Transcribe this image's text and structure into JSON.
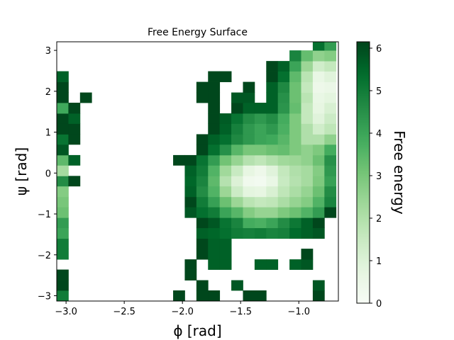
{
  "chart_data": {
    "type": "heatmap",
    "title": "Free Energy Surface",
    "xlabel": "ϕ  [rad]",
    "ylabel": "ψ  [rad]",
    "colorbar_label": "Free energy",
    "colormap": "Greens",
    "color_low": "#f7fcf5",
    "color_high": "#00441b",
    "xlim": [
      -3.08,
      -0.66
    ],
    "ylim": [
      -3.13,
      3.21
    ],
    "vlim": [
      0,
      6.15
    ],
    "x_ticks": [
      -3.0,
      -2.5,
      -2.0,
      -1.5,
      -1.0
    ],
    "x_tick_labels": [
      "−3.0",
      "−2.5",
      "−2.0",
      "−1.5",
      "−1.0"
    ],
    "y_ticks": [
      -3,
      -2,
      -1,
      0,
      1,
      2,
      3
    ],
    "y_tick_labels": [
      "−3",
      "−2",
      "−1",
      "0",
      "1",
      "2",
      "3"
    ],
    "colorbar_ticks": [
      0,
      1,
      2,
      3,
      4,
      5,
      6
    ],
    "colorbar_tick_labels": [
      "0",
      "1",
      "2",
      "3",
      "4",
      "5",
      "6"
    ],
    "grid": false,
    "x_bin_edges": [
      -3.08,
      -2.98,
      -2.88,
      -2.78,
      -2.68,
      -2.58,
      -2.48,
      -2.38,
      -2.28,
      -2.18,
      -2.08,
      -1.98,
      -1.88,
      -1.78,
      -1.68,
      -1.58,
      -1.48,
      -1.38,
      -1.28,
      -1.18,
      -1.08,
      -0.98,
      -0.88,
      -0.78,
      -0.68
    ],
    "y_bin_edges": [
      -3.13,
      -2.87,
      -2.62,
      -2.36,
      -2.11,
      -1.85,
      -1.6,
      -1.34,
      -1.09,
      -0.83,
      -0.58,
      -0.32,
      -0.07,
      0.19,
      0.44,
      0.7,
      0.95,
      1.21,
      1.46,
      1.72,
      1.97,
      2.23,
      2.49,
      2.74,
      3.0,
      3.21
    ],
    "values": [
      [
        null,
        null,
        null,
        null,
        null,
        null,
        null,
        null,
        null,
        null,
        6.1,
        null,
        6.1,
        6.1,
        null,
        null,
        6.1,
        6.1,
        null,
        null,
        null,
        null,
        6.1,
        null,
        null
      ],
      [
        null,
        null,
        null,
        null,
        null,
        null,
        null,
        null,
        null,
        null,
        null,
        null,
        6.1,
        null,
        null,
        5.8,
        null,
        null,
        null,
        null,
        null,
        null,
        5.8,
        null,
        null
      ],
      [
        null,
        null,
        null,
        null,
        null,
        null,
        null,
        null,
        null,
        null,
        null,
        6.1,
        null,
        null,
        null,
        null,
        null,
        null,
        null,
        null,
        null,
        null,
        null,
        null,
        null
      ],
      [
        null,
        null,
        null,
        null,
        null,
        null,
        null,
        null,
        null,
        null,
        null,
        6.1,
        null,
        5.6,
        5.6,
        null,
        null,
        5.6,
        5.6,
        null,
        5.6,
        5.8,
        null,
        null,
        null
      ],
      [
        null,
        null,
        null,
        null,
        null,
        null,
        null,
        null,
        null,
        null,
        null,
        null,
        6.1,
        5.6,
        5.6,
        null,
        null,
        null,
        null,
        null,
        null,
        6.1,
        null,
        null,
        null
      ],
      [
        null,
        null,
        null,
        null,
        null,
        null,
        null,
        null,
        null,
        null,
        null,
        null,
        6.1,
        5.6,
        5.6,
        null,
        null,
        null,
        null,
        null,
        null,
        null,
        null,
        null,
        null
      ],
      [
        null,
        null,
        null,
        null,
        null,
        null,
        null,
        null,
        null,
        null,
        null,
        null,
        5.6,
        5.5,
        5.3,
        5.0,
        4.9,
        5.0,
        4.8,
        4.9,
        5.4,
        5.6,
        5.8,
        null,
        null
      ],
      [
        null,
        null,
        null,
        null,
        null,
        null,
        null,
        null,
        null,
        null,
        null,
        null,
        6.1,
        5.8,
        5.2,
        4.8,
        3.8,
        3.7,
        4.0,
        4.6,
        5.1,
        5.6,
        6.1,
        null,
        null
      ],
      [
        null,
        null,
        null,
        null,
        null,
        null,
        null,
        null,
        null,
        null,
        null,
        5.8,
        5.3,
        5.0,
        4.0,
        3.5,
        2.8,
        2.5,
        2.5,
        2.9,
        3.2,
        3.6,
        4.2,
        6.1,
        null
      ],
      [
        null,
        null,
        null,
        null,
        null,
        null,
        null,
        null,
        null,
        null,
        null,
        6.1,
        5.0,
        4.1,
        3.2,
        2.4,
        1.8,
        1.6,
        1.7,
        2.1,
        2.5,
        2.8,
        3.6,
        4.8,
        6.1
      ],
      [
        null,
        null,
        null,
        null,
        null,
        null,
        null,
        null,
        null,
        null,
        null,
        5.6,
        4.6,
        3.6,
        2.4,
        1.4,
        0.8,
        0.7,
        1.1,
        1.7,
        2.1,
        2.5,
        3.2,
        4.6,
        5.6
      ],
      [
        null,
        null,
        null,
        null,
        null,
        null,
        null,
        null,
        null,
        null,
        null,
        5.5,
        4.8,
        3.4,
        1.9,
        1.0,
        0.3,
        0.2,
        0.6,
        1.5,
        1.9,
        2.2,
        2.9,
        4.1,
        5.5
      ],
      [
        null,
        null,
        null,
        null,
        null,
        null,
        null,
        null,
        null,
        null,
        null,
        5.6,
        5.0,
        3.6,
        2.3,
        1.5,
        0.7,
        0.4,
        0.9,
        1.6,
        2.0,
        2.2,
        2.8,
        4.3,
        5.5
      ],
      [
        null,
        null,
        null,
        null,
        null,
        null,
        null,
        null,
        null,
        null,
        6.1,
        6.1,
        5.2,
        4.2,
        3.1,
        2.5,
        1.9,
        1.7,
        2.0,
        2.3,
        2.4,
        2.6,
        3.2,
        4.5,
        5.3
      ],
      [
        null,
        null,
        null,
        null,
        null,
        null,
        null,
        null,
        null,
        null,
        null,
        null,
        6.1,
        5.3,
        4.5,
        3.5,
        3.0,
        3.0,
        3.2,
        3.3,
        2.9,
        2.6,
        2.9,
        3.8,
        4.8
      ],
      [
        null,
        null,
        null,
        null,
        null,
        null,
        null,
        null,
        null,
        null,
        null,
        null,
        6.1,
        5.6,
        5.3,
        4.7,
        4.3,
        4.0,
        3.9,
        3.5,
        2.9,
        2.0,
        2.0,
        2.6,
        3.9
      ],
      [
        null,
        null,
        null,
        null,
        null,
        null,
        null,
        null,
        null,
        null,
        null,
        null,
        null,
        6.1,
        5.6,
        4.9,
        4.3,
        4.0,
        4.3,
        3.7,
        2.9,
        2.0,
        1.3,
        1.7,
        3.0
      ],
      [
        null,
        null,
        null,
        null,
        null,
        null,
        null,
        null,
        null,
        null,
        null,
        null,
        null,
        6.1,
        5.7,
        5.2,
        4.6,
        4.3,
        4.6,
        3.8,
        2.9,
        1.6,
        0.9,
        1.4,
        2.5
      ],
      [
        null,
        null,
        null,
        null,
        null,
        null,
        null,
        null,
        null,
        null,
        null,
        null,
        null,
        6.1,
        null,
        6.1,
        5.6,
        5.6,
        5.6,
        4.4,
        3.3,
        1.6,
        0.7,
        1.1,
        2.1
      ],
      [
        null,
        null,
        null,
        null,
        null,
        null,
        null,
        null,
        null,
        null,
        null,
        null,
        6.1,
        6.1,
        null,
        5.8,
        5.8,
        null,
        5.6,
        4.5,
        3.2,
        1.8,
        0.6,
        0.8,
        1.9
      ],
      [
        null,
        null,
        null,
        null,
        null,
        null,
        null,
        null,
        null,
        null,
        null,
        null,
        6.1,
        6.1,
        null,
        null,
        6.1,
        null,
        5.6,
        4.7,
        3.2,
        1.6,
        0.4,
        0.5,
        1.8
      ],
      [
        null,
        null,
        null,
        null,
        null,
        null,
        null,
        null,
        null,
        null,
        null,
        null,
        null,
        6.1,
        6.1,
        null,
        null,
        null,
        6.1,
        5.3,
        3.4,
        1.8,
        0.6,
        0.9,
        2.0
      ],
      [
        null,
        null,
        null,
        null,
        null,
        null,
        null,
        null,
        null,
        null,
        null,
        null,
        null,
        null,
        null,
        null,
        null,
        null,
        6.1,
        5.6,
        4.0,
        2.4,
        1.3,
        1.6,
        2.5
      ],
      [
        null,
        null,
        null,
        null,
        null,
        null,
        null,
        null,
        null,
        null,
        null,
        null,
        null,
        null,
        null,
        null,
        null,
        null,
        null,
        null,
        4.8,
        3.3,
        2.6,
        2.8,
        3.4
      ],
      [
        null,
        null,
        null,
        null,
        null,
        null,
        null,
        null,
        null,
        null,
        null,
        null,
        null,
        null,
        null,
        null,
        null,
        null,
        null,
        null,
        null,
        null,
        5.3,
        4.2,
        4.8
      ]
    ],
    "left_strip": {
      "note_free": false,
      "values": [
        5.0,
        6.1,
        6.1,
        null,
        5.0,
        5.0,
        4.0,
        4.2,
        3.2,
        3.0,
        2.8,
        4.6,
        2.2,
        3.4,
        5.8,
        5.2,
        6.1,
        6.1,
        3.9,
        6.1,
        6.1,
        5.6,
        null,
        null,
        null
      ],
      "neighbor_values": [
        null,
        null,
        null,
        null,
        null,
        null,
        null,
        null,
        null,
        null,
        null,
        6.1,
        null,
        5.6,
        null,
        6.1,
        6.1,
        5.6,
        6.1,
        null,
        null,
        null,
        null,
        null,
        null
      ]
    }
  }
}
